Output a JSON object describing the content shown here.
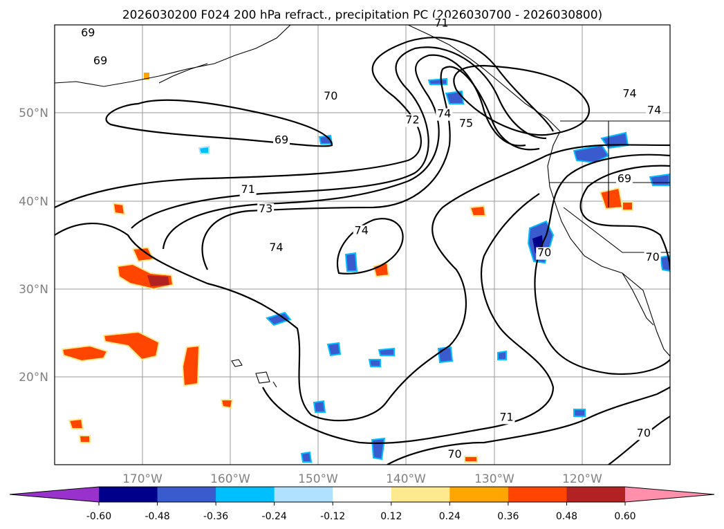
{
  "chart_data": {
    "type": "map_contour",
    "title": "2026030200 F024 200 hPa refract., precipitation PC (2026030700 - 2026030800)",
    "lat_labels": [
      "50°N",
      "40°N",
      "30°N",
      "20°N"
    ],
    "lon_labels": [
      "170°W",
      "160°W",
      "150°W",
      "140°W",
      "130°W",
      "120°W"
    ],
    "lat_ticks": [
      50,
      40,
      30,
      20
    ],
    "lon_ticks": [
      -170,
      -160,
      -150,
      -140,
      -130,
      -120
    ],
    "extent": {
      "lon_min": -180,
      "lon_max": -110,
      "lat_min": 10,
      "lat_max": 60
    },
    "contour_labels": [
      {
        "text": "69",
        "lon": -176.2,
        "lat": 58.7
      },
      {
        "text": "69",
        "lon": -174.8,
        "lat": 55.5
      },
      {
        "text": "71",
        "lon": -136.0,
        "lat": 59.8
      },
      {
        "text": "70",
        "lon": -148.6,
        "lat": 51.5
      },
      {
        "text": "72",
        "lon": -139.3,
        "lat": 48.8
      },
      {
        "text": "74",
        "lon": -135.7,
        "lat": 49.5
      },
      {
        "text": "75",
        "lon": -133.2,
        "lat": 48.4
      },
      {
        "text": "74",
        "lon": -114.6,
        "lat": 51.8
      },
      {
        "text": "74",
        "lon": -111.8,
        "lat": 49.9
      },
      {
        "text": "69",
        "lon": -154.2,
        "lat": 46.5
      },
      {
        "text": "69",
        "lon": -115.2,
        "lat": 42.1
      },
      {
        "text": "71",
        "lon": -158.0,
        "lat": 40.9
      },
      {
        "text": "73",
        "lon": -156.0,
        "lat": 38.7
      },
      {
        "text": "74",
        "lon": -154.8,
        "lat": 34.3
      },
      {
        "text": "74",
        "lon": -145.1,
        "lat": 36.2
      },
      {
        "text": "70",
        "lon": -124.3,
        "lat": 33.7
      },
      {
        "text": "70",
        "lon": -112.0,
        "lat": 33.2
      },
      {
        "text": "71",
        "lon": -128.6,
        "lat": 15.0
      },
      {
        "text": "70",
        "lon": -134.5,
        "lat": 10.8
      },
      {
        "text": "70",
        "lon": -113.0,
        "lat": 13.2
      }
    ],
    "colorbar": {
      "ticks": [
        "-0.60",
        "-0.48",
        "-0.36",
        "-0.24",
        "-0.12",
        "0.12",
        "0.24",
        "0.36",
        "0.48",
        "0.60"
      ],
      "colors": [
        "#9932cc",
        "#00008b",
        "#3a5bcd",
        "#00bfff",
        "#b0e2ff",
        "#ffffff",
        "#ffe98e",
        "#ffa500",
        "#ff4500",
        "#b22222",
        "#ff8fab"
      ],
      "extend": "both"
    }
  }
}
